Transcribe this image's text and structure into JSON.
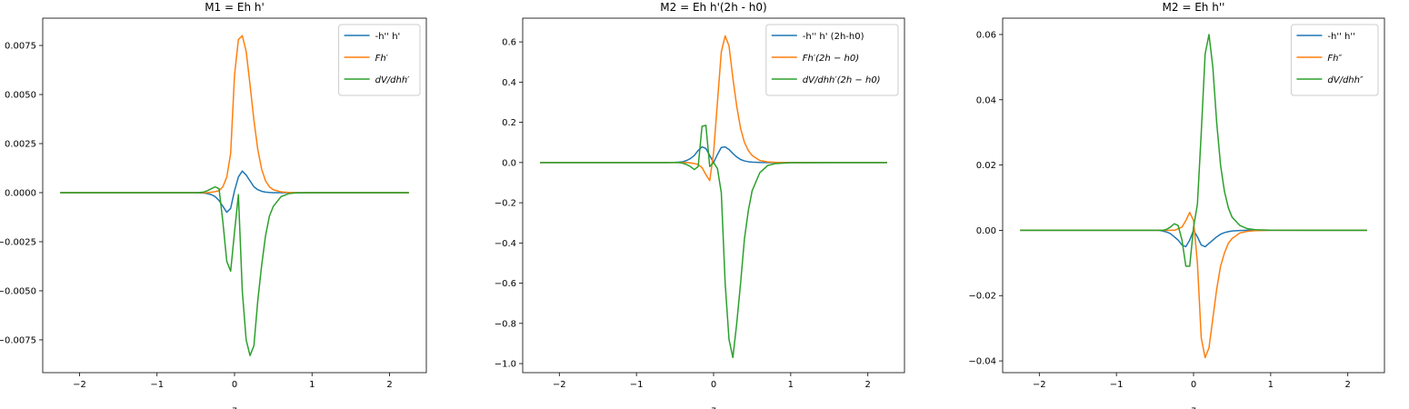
{
  "chart_data": [
    {
      "type": "line",
      "title": "M1 = Eh h'",
      "x_label": "z",
      "x": [
        -2.25,
        -1.5,
        -1.0,
        -0.8,
        -0.6,
        -0.5,
        -0.45,
        -0.4,
        -0.35,
        -0.3,
        -0.25,
        -0.2,
        -0.15,
        -0.1,
        -0.05,
        0,
        0.05,
        0.1,
        0.15,
        0.2,
        0.25,
        0.3,
        0.35,
        0.4,
        0.45,
        0.5,
        0.6,
        0.7,
        0.8,
        1.0,
        1.5,
        2.25
      ],
      "series": [
        {
          "name": "-h'' h'",
          "color": "#1f77b4",
          "values": [
            0,
            0,
            0,
            0,
            0,
            0,
            -1e-05,
            -2e-05,
            -5e-05,
            -0.0001,
            -0.0002,
            -0.0004,
            -0.0007,
            -0.001,
            -0.0008,
            0.0001,
            0.0008,
            0.0011,
            0.0009,
            0.0006,
            0.0003,
            0.00015,
            7e-05,
            3e-05,
            1e-05,
            0,
            0,
            0,
            0,
            0,
            0,
            0
          ]
        },
        {
          "name": "Fh′",
          "color": "#ff7f0e",
          "values": [
            0,
            0,
            0,
            0,
            0,
            0,
            0,
            0,
            0,
            2e-05,
            5e-05,
            0.0001,
            0.0003,
            0.0008,
            0.002,
            0.006,
            0.0078,
            0.008,
            0.0072,
            0.0055,
            0.0037,
            0.0022,
            0.0012,
            0.0006,
            0.0003,
            0.00015,
            4e-05,
            1e-05,
            0,
            0,
            0,
            0
          ]
        },
        {
          "name": "dV/dhh′",
          "color": "#2ca02c",
          "values": [
            0,
            0,
            0,
            0,
            0,
            0,
            1e-05,
            3e-05,
            0.0001,
            0.0002,
            0.0003,
            0.0002,
            -0.0015,
            -0.0035,
            -0.004,
            -0.002,
            -0.0001,
            -0.005,
            -0.0075,
            -0.0083,
            -0.0078,
            -0.0055,
            -0.0037,
            -0.0022,
            -0.0012,
            -0.0007,
            -0.0002,
            -5e-05,
            -1e-05,
            0,
            0,
            0
          ]
        }
      ],
      "xlim": [
        -2.475,
        2.475
      ],
      "ylim": [
        -0.00917,
        0.00889
      ],
      "xticks": [
        {
          "value": -2,
          "label": "−2"
        },
        {
          "value": -1,
          "label": "−1"
        },
        0,
        1,
        2
      ],
      "yticks": [
        {
          "value": -0.0075,
          "label": "−0.0075"
        },
        {
          "value": -0.005,
          "label": "−0.0050"
        },
        {
          "value": -0.0025,
          "label": "−0.0025"
        },
        {
          "value": 0,
          "label": "0.0000"
        },
        0.0025,
        {
          "value": 0.005,
          "label": "0.0050"
        },
        0.0075
      ],
      "legend": "upper right"
    },
    {
      "type": "line",
      "title": "M2 = Eh h'(2h - h0)",
      "x_label": "z",
      "x": [
        -2.25,
        -1.5,
        -1.0,
        -0.8,
        -0.6,
        -0.5,
        -0.45,
        -0.4,
        -0.35,
        -0.3,
        -0.25,
        -0.2,
        -0.15,
        -0.1,
        -0.05,
        0,
        0.05,
        0.1,
        0.15,
        0.2,
        0.25,
        0.3,
        0.35,
        0.4,
        0.45,
        0.5,
        0.6,
        0.7,
        0.8,
        1.0,
        1.5,
        2.25
      ],
      "series": [
        {
          "name": "-h'' h' (2h-h0)",
          "color": "#1f77b4",
          "values": [
            0,
            0,
            0,
            0,
            0,
            0.001,
            0.002,
            0.004,
            0.01,
            0.02,
            0.035,
            0.06,
            0.078,
            0.07,
            0.035,
            0,
            0.04,
            0.075,
            0.078,
            0.065,
            0.045,
            0.028,
            0.015,
            0.008,
            0.004,
            0.002,
            0.0005,
            0,
            0,
            0,
            0,
            0
          ]
        },
        {
          "name": "Fh′(2h − h0)",
          "color": "#ff7f0e",
          "values": [
            0,
            0,
            0,
            0,
            0,
            0,
            0,
            0,
            0,
            -0.002,
            -0.005,
            -0.01,
            -0.025,
            -0.06,
            -0.09,
            0.05,
            0.3,
            0.55,
            0.63,
            0.58,
            0.42,
            0.28,
            0.17,
            0.1,
            0.06,
            0.035,
            0.01,
            0.003,
            0.001,
            0,
            0,
            0
          ]
        },
        {
          "name": "dV/dhh′(2h − h0)",
          "color": "#2ca02c",
          "values": [
            0,
            0,
            0,
            0,
            0,
            0,
            0,
            -0.003,
            -0.01,
            -0.02,
            -0.035,
            -0.02,
            0.18,
            0.185,
            -0.02,
            0,
            -0.03,
            -0.15,
            -0.6,
            -0.88,
            -0.97,
            -0.8,
            -0.6,
            -0.38,
            -0.24,
            -0.14,
            -0.05,
            -0.015,
            -0.005,
            -0.001,
            0,
            0
          ]
        }
      ],
      "xlim": [
        -2.475,
        2.475
      ],
      "ylim": [
        -1.045,
        0.718
      ],
      "xticks": [
        {
          "value": -2,
          "label": "−2"
        },
        {
          "value": -1,
          "label": "−1"
        },
        0,
        1,
        2
      ],
      "yticks": [
        {
          "value": -1.0,
          "label": "−1.0"
        },
        {
          "value": -0.8,
          "label": "−0.8"
        },
        {
          "value": -0.6,
          "label": "−0.6"
        },
        {
          "value": -0.4,
          "label": "−0.4"
        },
        {
          "value": -0.2,
          "label": "−0.2"
        },
        {
          "value": 0,
          "label": "0.0"
        },
        0.2,
        0.4,
        0.6
      ],
      "legend": "upper right"
    },
    {
      "type": "line",
      "title": "M2 = Eh h''",
      "x_label": "z",
      "x": [
        -2.25,
        -1.5,
        -1.0,
        -0.8,
        -0.6,
        -0.5,
        -0.45,
        -0.4,
        -0.35,
        -0.3,
        -0.25,
        -0.2,
        -0.15,
        -0.1,
        -0.05,
        0,
        0.05,
        0.1,
        0.15,
        0.2,
        0.25,
        0.3,
        0.35,
        0.4,
        0.45,
        0.5,
        0.6,
        0.7,
        0.8,
        1.0,
        1.5,
        2.25
      ],
      "series": [
        {
          "name": "-h'' h''",
          "color": "#1f77b4",
          "values": [
            0,
            0,
            0,
            0,
            0,
            0,
            0,
            -0.0002,
            -0.0005,
            -0.001,
            -0.002,
            -0.003,
            -0.0045,
            -0.005,
            -0.003,
            0,
            -0.002,
            -0.0045,
            -0.005,
            -0.004,
            -0.003,
            -0.002,
            -0.0012,
            -0.0007,
            -0.0004,
            -0.0002,
            -5e-05,
            0,
            0,
            0,
            0,
            0
          ]
        },
        {
          "name": "Fh″",
          "color": "#ff7f0e",
          "values": [
            0,
            0,
            0,
            0,
            0,
            0,
            0,
            0,
            0,
            0,
            0,
            0.0005,
            0.001,
            0.003,
            0.0055,
            0.003,
            -0.01,
            -0.033,
            -0.039,
            -0.036,
            -0.027,
            -0.018,
            -0.011,
            -0.007,
            -0.004,
            -0.0025,
            -0.0008,
            -0.0003,
            -0.0001,
            0,
            0,
            0
          ]
        },
        {
          "name": "dV/dhh″",
          "color": "#2ca02c",
          "values": [
            0,
            0,
            0,
            0,
            0,
            0,
            0,
            0,
            0.0003,
            0.001,
            0.002,
            0.0015,
            -0.003,
            -0.011,
            -0.011,
            0.001,
            0.008,
            0.03,
            0.054,
            0.06,
            0.05,
            0.033,
            0.02,
            0.012,
            0.007,
            0.004,
            0.0015,
            0.0005,
            0.0002,
            5e-05,
            0,
            0
          ]
        }
      ],
      "xlim": [
        -2.475,
        2.475
      ],
      "ylim": [
        -0.0436,
        0.065
      ],
      "xticks": [
        {
          "value": -2,
          "label": "−2"
        },
        {
          "value": -1,
          "label": "−1"
        },
        0,
        1,
        2
      ],
      "yticks": [
        {
          "value": -0.04,
          "label": "−0.04"
        },
        {
          "value": -0.02,
          "label": "−0.02"
        },
        {
          "value": 0,
          "label": "0.00"
        },
        0.02,
        0.04,
        0.06
      ],
      "legend": "upper right"
    }
  ]
}
